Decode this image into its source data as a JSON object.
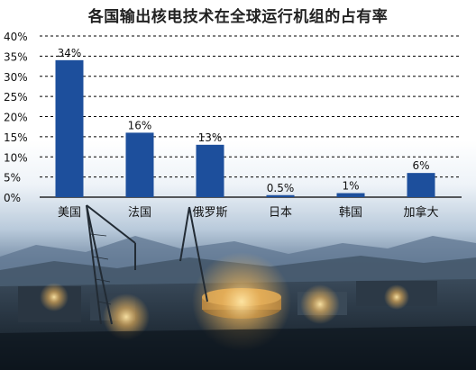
{
  "chart_data": {
    "type": "bar",
    "title": "各国输出核电技术在全球运行机组的占有率",
    "categories": [
      "美国",
      "法国",
      "俄罗斯",
      "日本",
      "韩国",
      "加拿大"
    ],
    "values": [
      34,
      16,
      13,
      0.5,
      1,
      6
    ],
    "data_labels": [
      "34%",
      "16%",
      "13%",
      "0.5%",
      "1%",
      "6%"
    ],
    "ylim": [
      0,
      40
    ],
    "yticks": [
      0,
      5,
      10,
      15,
      20,
      25,
      30,
      35,
      40
    ],
    "ytick_labels": [
      "0%",
      "5%",
      "10%",
      "15%",
      "20%",
      "25%",
      "30%",
      "35%",
      "40%"
    ],
    "xlabel": "",
    "ylabel": "",
    "grid": "horizontal-dashed",
    "bar_color": "#1d4f9c"
  }
}
